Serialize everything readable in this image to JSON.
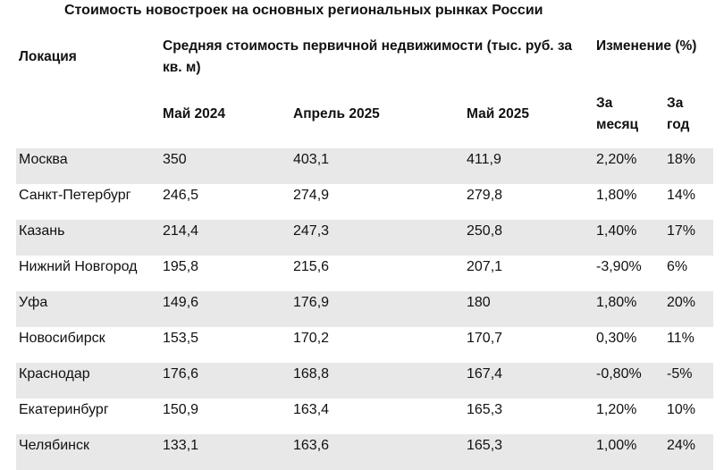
{
  "title": "Стоимость новостроек на основных региональных рынках России",
  "headers": {
    "location": "Локация",
    "avg_cost": "Средняя стоимость первичной недвижимости (тыс. руб. за кв. м)",
    "change": "Изменение (%)",
    "may_2024": "Май 2024",
    "apr_2025": "Апрель 2025",
    "may_2025": "Май 2025",
    "per_month": "За месяц",
    "per_year": "За год"
  },
  "rows": [
    {
      "location": "Москва",
      "may_2024": "350",
      "apr_2025": "403,1",
      "may_2025": "411,9",
      "per_month": "2,20%",
      "per_year": "18%"
    },
    {
      "location": "Санкт-Петербург",
      "may_2024": "246,5",
      "apr_2025": "274,9",
      "may_2025": "279,8",
      "per_month": "1,80%",
      "per_year": "14%"
    },
    {
      "location": "Казань",
      "may_2024": "214,4",
      "apr_2025": "247,3",
      "may_2025": "250,8",
      "per_month": "1,40%",
      "per_year": "17%"
    },
    {
      "location": "Нижний Новгород",
      "may_2024": "195,8",
      "apr_2025": "215,6",
      "may_2025": "207,1",
      "per_month": "-3,90%",
      "per_year": "6%"
    },
    {
      "location": "Уфа",
      "may_2024": "149,6",
      "apr_2025": "176,9",
      "may_2025": "180",
      "per_month": "1,80%",
      "per_year": "20%"
    },
    {
      "location": "Новосибирск",
      "may_2024": "153,5",
      "apr_2025": "170,2",
      "may_2025": "170,7",
      "per_month": "0,30%",
      "per_year": "11%"
    },
    {
      "location": "Краснодар",
      "may_2024": "176,6",
      "apr_2025": "168,8",
      "may_2025": "167,4",
      "per_month": "-0,80%",
      "per_year": "-5%"
    },
    {
      "location": "Екатеринбург",
      "may_2024": "150,9",
      "apr_2025": "163,4",
      "may_2025": "165,3",
      "per_month": "1,20%",
      "per_year": "10%"
    },
    {
      "location": "Челябинск",
      "may_2024": "133,1",
      "apr_2025": "163,6",
      "may_2025": "165,3",
      "per_month": "1,00%",
      "per_year": "24%"
    }
  ]
}
